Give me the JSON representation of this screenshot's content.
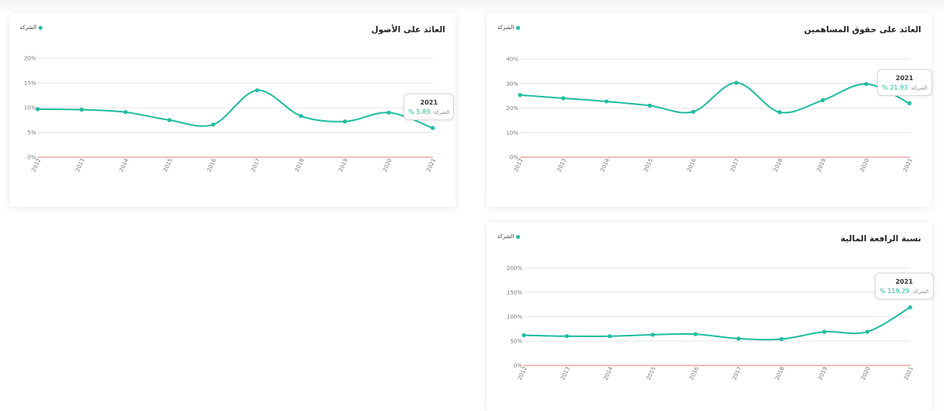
{
  "colors": {
    "series": "#1fbda1",
    "zero_line": "#f07878",
    "grid": "#e4e4e4",
    "tick": "#777777"
  },
  "chart_data": [
    {
      "type": "line",
      "title": "العائد على الأصول",
      "legend": "الشركة",
      "x": [
        "2012",
        "2013",
        "2014",
        "2015",
        "2016",
        "2017",
        "2018",
        "2019",
        "2020",
        "2021"
      ],
      "series": [
        {
          "name": "الشركة",
          "values": [
            9.7,
            9.6,
            9.1,
            7.5,
            6.6,
            13.5,
            8.3,
            7.2,
            9.0,
            5.89
          ]
        }
      ],
      "yticks": [
        "20%",
        "15%",
        "10%",
        "5%",
        "0%"
      ],
      "ylim": [
        0,
        20
      ],
      "reference_line": 0,
      "tooltip": {
        "year": "2021",
        "label": "الشركة:",
        "value": "5.89 %"
      }
    },
    {
      "type": "line",
      "title": "العائد على حقوق المساهمين",
      "legend": "الشركة",
      "x": [
        "2012",
        "2013",
        "2014",
        "2015",
        "2016",
        "2017",
        "2018",
        "2019",
        "2020",
        "2021"
      ],
      "series": [
        {
          "name": "الشركة",
          "values": [
            25.3,
            24.0,
            22.7,
            21.0,
            18.5,
            30.3,
            18.3,
            23.2,
            29.8,
            21.93
          ]
        }
      ],
      "yticks": [
        "40%",
        "30%",
        "20%",
        "10%",
        "0%"
      ],
      "ylim": [
        0,
        40
      ],
      "reference_line": 0,
      "tooltip": {
        "year": "2021",
        "label": "الشركة:",
        "value": "21.93 %"
      }
    },
    {
      "type": "line",
      "title": "نسبة الرافعة المالية",
      "legend": "الشركة",
      "x": [
        "2012",
        "2013",
        "2014",
        "2015",
        "2016",
        "2017",
        "2018",
        "2019",
        "2020",
        "2021"
      ],
      "series": [
        {
          "name": "الشركة",
          "values": [
            62,
            60,
            60,
            63,
            64,
            55,
            54,
            69,
            69,
            119.29
          ]
        }
      ],
      "yticks": [
        "200%",
        "150%",
        "100%",
        "50%",
        "0%"
      ],
      "ylim": [
        0,
        200
      ],
      "reference_line": 0,
      "tooltip": {
        "year": "2021",
        "label": "الشركة:",
        "value": "119.29 %"
      }
    }
  ]
}
